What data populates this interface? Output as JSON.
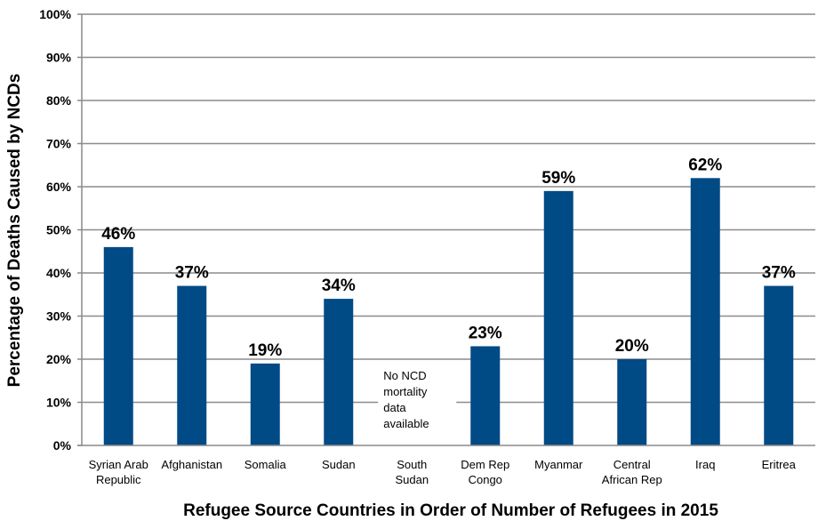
{
  "chart_data": {
    "type": "bar",
    "title": "",
    "xlabel": "Refugee Source Countries in Order of Number of Refugees in 2015",
    "ylabel": "Percentage of Deaths Caused by NCDs",
    "ylim": [
      0,
      100
    ],
    "yticks": [
      "0%",
      "10%",
      "20%",
      "30%",
      "40%",
      "50%",
      "60%",
      "70%",
      "80%",
      "90%",
      "100%"
    ],
    "grid": true,
    "bar_color": "#004a86",
    "categories": [
      [
        "Syrian Arab",
        "Republic"
      ],
      [
        "Afghanistan"
      ],
      [
        "Somalia"
      ],
      [
        "Sudan"
      ],
      [
        "South",
        "Sudan"
      ],
      [
        "Dem Rep",
        "Congo"
      ],
      [
        "Myanmar"
      ],
      [
        "Central",
        "African Rep"
      ],
      [
        "Iraq"
      ],
      [
        "Eritrea"
      ]
    ],
    "values": [
      46,
      37,
      19,
      34,
      null,
      23,
      59,
      20,
      62,
      37
    ],
    "data_labels": [
      "46%",
      "37%",
      "19%",
      "34%",
      "",
      "23%",
      "59%",
      "20%",
      "62%",
      "37%"
    ],
    "annotations": [
      {
        "category_index": 4,
        "lines": [
          "No NCD",
          "mortality",
          "data",
          "available"
        ]
      }
    ]
  }
}
